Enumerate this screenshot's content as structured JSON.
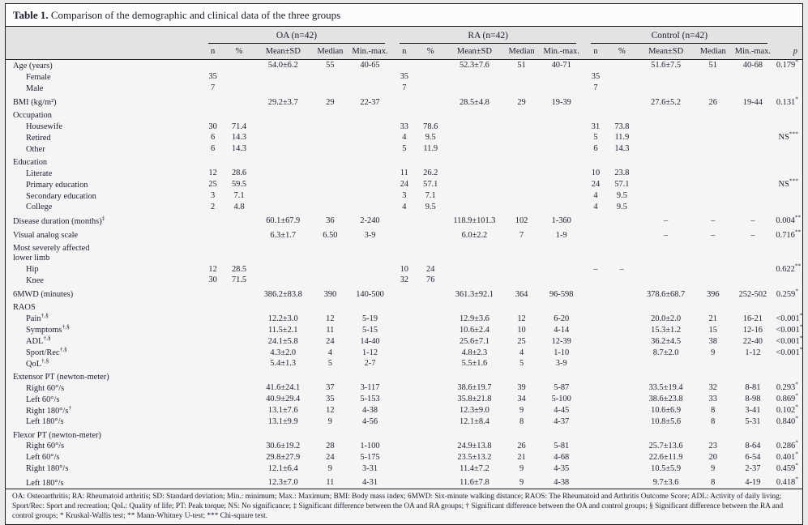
{
  "title": {
    "label": "Table 1.",
    "text": " Comparison of the demographic and clinical data of the three groups"
  },
  "colors": {
    "page_bg": "#e9e9ea",
    "panel_bg": "#f5f5f6",
    "header_band": "#e3e3e4",
    "title_bg": "#fcfcfc",
    "rule": "#1c1c1c",
    "text": "#1d1d30"
  },
  "header": {
    "groups": [
      {
        "name": "OA (n=42)"
      },
      {
        "name": "RA (n=42)"
      },
      {
        "name": "Control (n=42)"
      }
    ],
    "subcols": [
      "n",
      "%",
      "Mean±SD",
      "Median",
      "Min.-max."
    ],
    "subkeys": [
      "n",
      "pct",
      "mean",
      "median",
      "minmax"
    ],
    "p_label": "p"
  },
  "rows": [
    {
      "label": "Age (years)",
      "cells": {
        "oa": [
          "",
          "",
          "54.0±6.2",
          "55",
          "40-65"
        ],
        "ra": [
          "",
          "",
          "52.3±7.6",
          "51",
          "40-71"
        ],
        "control": [
          "",
          "",
          "51.6±7.5",
          "51",
          "40-68"
        ]
      },
      "p": "0.179*"
    },
    {
      "label": "Female",
      "indent": true,
      "cells": {
        "oa": [
          "35",
          "",
          "",
          "",
          ""
        ],
        "ra": [
          "35",
          "",
          "",
          "",
          ""
        ],
        "control": [
          "35",
          "",
          "",
          "",
          ""
        ]
      },
      "p": ""
    },
    {
      "label": "Male",
      "indent": true,
      "cells": {
        "oa": [
          "7",
          "",
          "",
          "",
          ""
        ],
        "ra": [
          "7",
          "",
          "",
          "",
          ""
        ],
        "control": [
          "7",
          "",
          "",
          "",
          ""
        ]
      },
      "p": ""
    },
    {
      "label": "BMI (kg/m²)",
      "pad": true,
      "cells": {
        "oa": [
          "",
          "",
          "29.2±3.7",
          "29",
          "22-37"
        ],
        "ra": [
          "",
          "",
          "28.5±4.8",
          "29",
          "19-39"
        ],
        "control": [
          "",
          "",
          "27.6±5.2",
          "26",
          "19-44"
        ]
      },
      "p": "0.131*"
    },
    {
      "label": "Occupation",
      "section": true,
      "pad": true,
      "cells": null,
      "p": ""
    },
    {
      "label": "Housewife",
      "indent": true,
      "cells": {
        "oa": [
          "30",
          "71.4",
          "",
          "",
          ""
        ],
        "ra": [
          "33",
          "78.6",
          "",
          "",
          ""
        ],
        "control": [
          "31",
          "73.8",
          "",
          "",
          ""
        ]
      },
      "p": ""
    },
    {
      "label": "Retired",
      "indent": true,
      "cells": {
        "oa": [
          "6",
          "14.3",
          "",
          "",
          ""
        ],
        "ra": [
          "4",
          "9.5",
          "",
          "",
          ""
        ],
        "control": [
          "5",
          "11.9",
          "",
          "",
          ""
        ]
      },
      "p": "NS***"
    },
    {
      "label": "Other",
      "indent": true,
      "cells": {
        "oa": [
          "6",
          "14.3",
          "",
          "",
          ""
        ],
        "ra": [
          "5",
          "11.9",
          "",
          "",
          ""
        ],
        "control": [
          "6",
          "14.3",
          "",
          "",
          ""
        ]
      },
      "p": ""
    },
    {
      "label": "Education",
      "section": true,
      "pad": true,
      "cells": null,
      "p": ""
    },
    {
      "label": "Literate",
      "indent": true,
      "cells": {
        "oa": [
          "12",
          "28.6",
          "",
          "",
          ""
        ],
        "ra": [
          "11",
          "26.2",
          "",
          "",
          ""
        ],
        "control": [
          "10",
          "23.8",
          "",
          "",
          ""
        ]
      },
      "p": ""
    },
    {
      "label": "Primary education",
      "indent": true,
      "cells": {
        "oa": [
          "25",
          "59.5",
          "",
          "",
          ""
        ],
        "ra": [
          "24",
          "57.1",
          "",
          "",
          ""
        ],
        "control": [
          "24",
          "57.1",
          "",
          "",
          ""
        ]
      },
      "p": "NS***"
    },
    {
      "label": "Secondary education",
      "indent": true,
      "cells": {
        "oa": [
          "3",
          "7.1",
          "",
          "",
          ""
        ],
        "ra": [
          "3",
          "7.1",
          "",
          "",
          ""
        ],
        "control": [
          "4",
          "9.5",
          "",
          "",
          ""
        ]
      },
      "p": ""
    },
    {
      "label": "College",
      "indent": true,
      "cells": {
        "oa": [
          "2",
          "4.8",
          "",
          "",
          ""
        ],
        "ra": [
          "4",
          "9.5",
          "",
          "",
          ""
        ],
        "control": [
          "4",
          "9.5",
          "",
          "",
          ""
        ]
      },
      "p": ""
    },
    {
      "label": "Disease duration (months)‡",
      "pad": true,
      "cells": {
        "oa": [
          "",
          "",
          "60.1±67.9",
          "36",
          "2-240"
        ],
        "ra": [
          "",
          "",
          "118.9±101.3",
          "102",
          "1-360"
        ],
        "control": [
          "",
          "",
          "–",
          "–",
          "–"
        ]
      },
      "p": "0.004**"
    },
    {
      "label": "Visual analog scale",
      "pad": true,
      "cells": {
        "oa": [
          "",
          "",
          "6.3±1.7",
          "6.50",
          "3-9"
        ],
        "ra": [
          "",
          "",
          "6.0±2.2",
          "7",
          "1-9"
        ],
        "control": [
          "",
          "",
          "–",
          "–",
          "–"
        ]
      },
      "p": "0.716**"
    },
    {
      "label": "Most severely affected\nlower limb",
      "section": true,
      "pad": true,
      "cells": null,
      "p": ""
    },
    {
      "label": "Hip",
      "indent": true,
      "cells": {
        "oa": [
          "12",
          "28.5",
          "",
          "",
          ""
        ],
        "ra": [
          "10",
          "24",
          "",
          "",
          ""
        ],
        "control": [
          "–",
          "–",
          "",
          "",
          ""
        ]
      },
      "p": "0.622**"
    },
    {
      "label": "Knee",
      "indent": true,
      "cells": {
        "oa": [
          "30",
          "71.5",
          "",
          "",
          ""
        ],
        "ra": [
          "32",
          "76",
          "",
          "",
          ""
        ],
        "control": [
          "",
          "",
          "",
          "",
          ""
        ]
      },
      "p": ""
    },
    {
      "label": "6MWD (minutes)",
      "pad": true,
      "cells": {
        "oa": [
          "",
          "",
          "386.2±83.8",
          "390",
          "140-500"
        ],
        "ra": [
          "",
          "",
          "361.3±92.1",
          "364",
          "96-598"
        ],
        "control": [
          "",
          "",
          "378.6±68.7",
          "396",
          "252-502"
        ]
      },
      "p": "0.259*"
    },
    {
      "label": "RAOS",
      "section": true,
      "pad": true,
      "cells": null,
      "p": ""
    },
    {
      "label": "Pain†,§",
      "indent": true,
      "cells": {
        "oa": [
          "",
          "",
          "12.2±3.0",
          "12",
          "5-19"
        ],
        "ra": [
          "",
          "",
          "12.9±3.6",
          "12",
          "6-20"
        ],
        "control": [
          "",
          "",
          "20.0±2.0",
          "21",
          "16-21"
        ]
      },
      "p": "<0.001*"
    },
    {
      "label": "Symptoms†,§",
      "indent": true,
      "cells": {
        "oa": [
          "",
          "",
          "11.5±2.1",
          "11",
          "5-15"
        ],
        "ra": [
          "",
          "",
          "10.6±2.4",
          "10",
          "4-14"
        ],
        "control": [
          "",
          "",
          "15.3±1.2",
          "15",
          "12-16"
        ]
      },
      "p": "<0.001*"
    },
    {
      "label": "ADL†,§",
      "indent": true,
      "cells": {
        "oa": [
          "",
          "",
          "24.1±5.8",
          "24",
          "14-40"
        ],
        "ra": [
          "",
          "",
          "25.6±7.1",
          "25",
          "12-39"
        ],
        "control": [
          "",
          "",
          "36.2±4.5",
          "38",
          "22-40"
        ]
      },
      "p": "<0.001*"
    },
    {
      "label": "Sport/Rec†,§",
      "indent": true,
      "cells": {
        "oa": [
          "",
          "",
          "4.3±2.0",
          "4",
          "1-12"
        ],
        "ra": [
          "",
          "",
          "4.8±2.3",
          "4",
          "1-10"
        ],
        "control": [
          "",
          "",
          "8.7±2.0",
          "9",
          "1-12"
        ]
      },
      "p": "<0.001*"
    },
    {
      "label": "QoL†,§",
      "indent": true,
      "cells": {
        "oa": [
          "",
          "",
          "5.4±1.3",
          "5",
          "2-7"
        ],
        "ra": [
          "",
          "",
          "5.5±1.6",
          "5",
          "3-9"
        ],
        "control": [
          "",
          "",
          "",
          "",
          ""
        ]
      },
      "p": ""
    },
    {
      "label": "Extensor PT (newton-meter)",
      "section": true,
      "pad": true,
      "cells": null,
      "p": ""
    },
    {
      "label": "Right 60°/s",
      "indent": true,
      "cells": {
        "oa": [
          "",
          "",
          "41.6±24.1",
          "37",
          "3-117"
        ],
        "ra": [
          "",
          "",
          "38.6±19.7",
          "39",
          "5-87"
        ],
        "control": [
          "",
          "",
          "33.5±19.4",
          "32",
          "8-81"
        ]
      },
      "p": "0.293*"
    },
    {
      "label": "Left 60°/s",
      "indent": true,
      "cells": {
        "oa": [
          "",
          "",
          "40.9±29.4",
          "35",
          "5-153"
        ],
        "ra": [
          "",
          "",
          "35.8±21.8",
          "34",
          "5-100"
        ],
        "control": [
          "",
          "",
          "38.6±23.8",
          "33",
          "8-98"
        ]
      },
      "p": "0.869*"
    },
    {
      "label": "Right 180°/s†",
      "indent": true,
      "cells": {
        "oa": [
          "",
          "",
          "13.1±7.6",
          "12",
          "4-38"
        ],
        "ra": [
          "",
          "",
          "12.3±9.0",
          "9",
          "4-45"
        ],
        "control": [
          "",
          "",
          "10.6±6.9",
          "8",
          "3-41"
        ]
      },
      "p": "0.102*"
    },
    {
      "label": "Left 180°/s",
      "indent": true,
      "cells": {
        "oa": [
          "",
          "",
          "13.1±9.9",
          "9",
          "4-56"
        ],
        "ra": [
          "",
          "",
          "12.1±8.4",
          "8",
          "4-37"
        ],
        "control": [
          "",
          "",
          "10.8±5.6",
          "8",
          "5-31"
        ]
      },
      "p": "0.840*"
    },
    {
      "label": "Flexor PT (newton-meter)",
      "section": true,
      "pad": true,
      "cells": null,
      "p": ""
    },
    {
      "label": "Right 60°/s",
      "indent": true,
      "cells": {
        "oa": [
          "",
          "",
          "30.6±19.2",
          "28",
          "1-100"
        ],
        "ra": [
          "",
          "",
          "24.9±13.8",
          "26",
          "5-81"
        ],
        "control": [
          "",
          "",
          "25.7±13.6",
          "23",
          "8-64"
        ]
      },
      "p": "0.286*"
    },
    {
      "label": "Left 60°/s",
      "indent": true,
      "cells": {
        "oa": [
          "",
          "",
          "29.8±27.9",
          "24",
          "5-175"
        ],
        "ra": [
          "",
          "",
          "23.5±13.2",
          "21",
          "4-68"
        ],
        "control": [
          "",
          "",
          "22.6±11.9",
          "20",
          "6-54"
        ]
      },
      "p": "0.401*"
    },
    {
      "label": "Right 180°/s",
      "indent": true,
      "cells": {
        "oa": [
          "",
          "",
          "12.1±6.4",
          "9",
          "3-31"
        ],
        "ra": [
          "",
          "",
          "11.4±7.2",
          "9",
          "4-35"
        ],
        "control": [
          "",
          "",
          "10.5±5.9",
          "9",
          "2-37"
        ]
      },
      "p": "0.459*"
    },
    {
      "label": "Left 180°/s",
      "indent": true,
      "pad": true,
      "cells": {
        "oa": [
          "",
          "",
          "12.3±7.0",
          "11",
          "4-31"
        ],
        "ra": [
          "",
          "",
          "11.6±7.8",
          "9",
          "4-38"
        ],
        "control": [
          "",
          "",
          "9.7±3.6",
          "8",
          "4-19"
        ]
      },
      "p": "0.418*"
    }
  ],
  "footnote": "OA: Osteoarthritis; RA: Rheumatoid arthritis; SD: Standard deviation; Min.: minimum; Max.: Maximum; BMI: Body mass index; 6MWD: Six-minute walking distance; RAOS: The Rheumatoid and Arthritis Outcome Score; ADL: Activity of daily living; Sport/Rec: Sport and recreation; QoL: Quality of life; PT: Peak torque; NS: No significance; ‡ Significant difference between the OA and RA groups; † Significant difference between the OA and control groups; § Significant difference between the RA and control groups; * Kruskal-Wallis test; ** Mann-Whitney U-test; *** Chi-square test."
}
